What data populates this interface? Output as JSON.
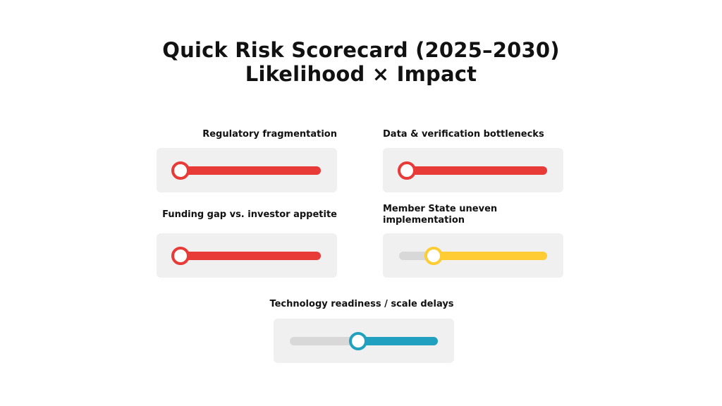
{
  "title": {
    "line1": "Quick Risk Scorecard (2025–2030)",
    "line2": "Likelihood × Impact"
  },
  "colors": {
    "high": "#e83a36",
    "medium": "#ffcc33",
    "low": "#22a0bf",
    "track": "#d8d8d8",
    "panel": "#f0f0f0"
  },
  "risks": [
    {
      "label": "Regulatory fragmentation",
      "value": 0.0,
      "color": "#e83a36"
    },
    {
      "label": "Data & verification bottlenecks",
      "value": 0.0,
      "color": "#e83a36"
    },
    {
      "label": "Funding gap vs. investor appetite",
      "value": 0.0,
      "color": "#e83a36"
    },
    {
      "label": "Member State uneven implementation",
      "value": 0.2,
      "color": "#ffcc33"
    },
    {
      "label": "Technology readiness / scale delays",
      "value": 0.46,
      "color": "#22a0bf"
    }
  ]
}
